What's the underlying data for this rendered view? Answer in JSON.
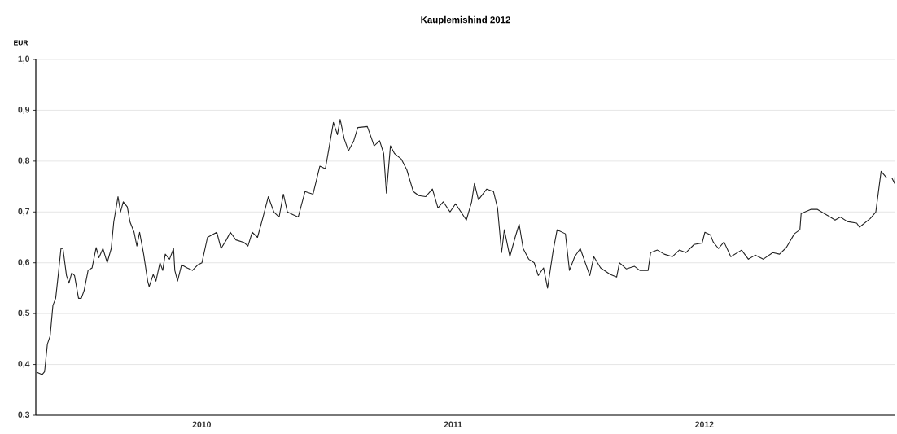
{
  "chart_data": {
    "type": "line",
    "title": "Kauplemishind 2012",
    "ylabel": "EUR",
    "x": [
      2009.343,
      2009.365,
      2009.375,
      2009.386,
      2009.397,
      2009.408,
      2009.419,
      2009.429,
      2009.44,
      2009.448,
      2009.462,
      2009.472,
      2009.483,
      2009.494,
      2009.51,
      2009.521,
      2009.532,
      2009.548,
      2009.564,
      2009.58,
      2009.591,
      2009.607,
      2009.624,
      2009.64,
      2009.65,
      2009.667,
      2009.677,
      2009.688,
      2009.704,
      2009.715,
      2009.731,
      2009.742,
      2009.753,
      2009.769,
      2009.785,
      2009.791,
      2009.807,
      2009.818,
      2009.834,
      2009.845,
      2009.855,
      2009.872,
      2009.888,
      2009.893,
      2009.904,
      2009.92,
      2009.942,
      2009.963,
      2009.985,
      2010.001,
      2010.023,
      2010.06,
      2010.077,
      2010.098,
      2010.114,
      2010.136,
      2010.168,
      2010.184,
      2010.201,
      2010.222,
      2010.244,
      2010.265,
      2010.287,
      2010.308,
      2010.325,
      2010.341,
      2010.362,
      2010.384,
      2010.411,
      2010.443,
      2010.47,
      2010.492,
      2010.508,
      2010.524,
      2010.54,
      2010.551,
      2010.567,
      2010.584,
      2010.605,
      2010.621,
      2010.659,
      2010.686,
      2010.708,
      2010.724,
      2010.735,
      2010.751,
      2010.767,
      2010.794,
      2010.816,
      2010.842,
      2010.864,
      2010.891,
      2010.918,
      2010.94,
      2010.961,
      2010.988,
      2011.01,
      2011.053,
      2011.074,
      2011.085,
      2011.101,
      2011.134,
      2011.161,
      2011.177,
      2011.193,
      2011.204,
      2011.226,
      2011.247,
      2011.263,
      2011.279,
      2011.301,
      2011.323,
      2011.339,
      2011.36,
      2011.376,
      2011.398,
      2011.414,
      2011.447,
      2011.463,
      2011.484,
      2011.506,
      2011.544,
      2011.56,
      2011.587,
      2011.625,
      2011.651,
      2011.662,
      2011.689,
      2011.722,
      2011.743,
      2011.776,
      2011.786,
      2011.813,
      2011.84,
      2011.873,
      2011.9,
      2011.927,
      2011.959,
      2011.991,
      2012.002,
      2012.024,
      2012.035,
      2012.056,
      2012.078,
      2012.105,
      2012.148,
      2012.175,
      2012.202,
      2012.234,
      2012.272,
      2012.299,
      2012.326,
      2012.358,
      2012.38,
      2012.385,
      2012.423,
      2012.45,
      2012.477,
      2012.52,
      2012.541,
      2012.569,
      2012.606,
      2012.617,
      2012.66,
      2012.682,
      2012.703,
      2012.725,
      2012.746,
      2012.757,
      2012.76
    ],
    "series": [
      {
        "color": "#222222",
        "values": [
          0.385,
          0.38,
          0.386,
          0.44,
          0.456,
          0.516,
          0.53,
          0.575,
          0.628,
          0.628,
          0.575,
          0.56,
          0.58,
          0.575,
          0.53,
          0.53,
          0.545,
          0.585,
          0.59,
          0.63,
          0.61,
          0.628,
          0.6,
          0.628,
          0.68,
          0.73,
          0.7,
          0.72,
          0.71,
          0.68,
          0.66,
          0.633,
          0.66,
          0.617,
          0.564,
          0.553,
          0.577,
          0.564,
          0.6,
          0.585,
          0.617,
          0.607,
          0.628,
          0.585,
          0.564,
          0.596,
          0.59,
          0.585,
          0.596,
          0.6,
          0.65,
          0.66,
          0.628,
          0.645,
          0.66,
          0.645,
          0.64,
          0.633,
          0.66,
          0.65,
          0.69,
          0.73,
          0.7,
          0.69,
          0.735,
          0.7,
          0.695,
          0.69,
          0.74,
          0.735,
          0.79,
          0.785,
          0.83,
          0.876,
          0.852,
          0.882,
          0.844,
          0.82,
          0.84,
          0.866,
          0.868,
          0.83,
          0.84,
          0.815,
          0.737,
          0.83,
          0.815,
          0.804,
          0.783,
          0.74,
          0.732,
          0.73,
          0.745,
          0.708,
          0.72,
          0.7,
          0.716,
          0.684,
          0.72,
          0.756,
          0.724,
          0.745,
          0.74,
          0.708,
          0.62,
          0.665,
          0.612,
          0.65,
          0.676,
          0.628,
          0.607,
          0.6,
          0.575,
          0.59,
          0.55,
          0.623,
          0.665,
          0.657,
          0.585,
          0.612,
          0.628,
          0.575,
          0.612,
          0.59,
          0.577,
          0.572,
          0.6,
          0.588,
          0.593,
          0.585,
          0.585,
          0.62,
          0.625,
          0.617,
          0.612,
          0.625,
          0.62,
          0.636,
          0.639,
          0.66,
          0.655,
          0.641,
          0.628,
          0.641,
          0.612,
          0.625,
          0.607,
          0.615,
          0.607,
          0.62,
          0.617,
          0.63,
          0.657,
          0.665,
          0.697,
          0.705,
          0.705,
          0.697,
          0.684,
          0.69,
          0.681,
          0.678,
          0.67,
          0.687,
          0.7,
          0.78,
          0.767,
          0.767,
          0.756,
          0.788
        ]
      }
    ],
    "xlim": [
      2009.34,
      2012.76
    ],
    "xticks": [
      2010,
      2011,
      2012
    ],
    "ylim": [
      0.3,
      1.0
    ],
    "yticks": [
      {
        "value": 0.3,
        "label": "0,3"
      },
      {
        "value": 0.4,
        "label": "0,4"
      },
      {
        "value": 0.5,
        "label": "0,5"
      },
      {
        "value": 0.6,
        "label": "0,6"
      },
      {
        "value": 0.7,
        "label": "0,7"
      },
      {
        "value": 0.8,
        "label": "0,8"
      },
      {
        "value": 0.9,
        "label": "0,9"
      },
      {
        "value": 1.0,
        "label": "1,0"
      }
    ],
    "grid": "y",
    "marker": "none",
    "line_style": "solid"
  }
}
